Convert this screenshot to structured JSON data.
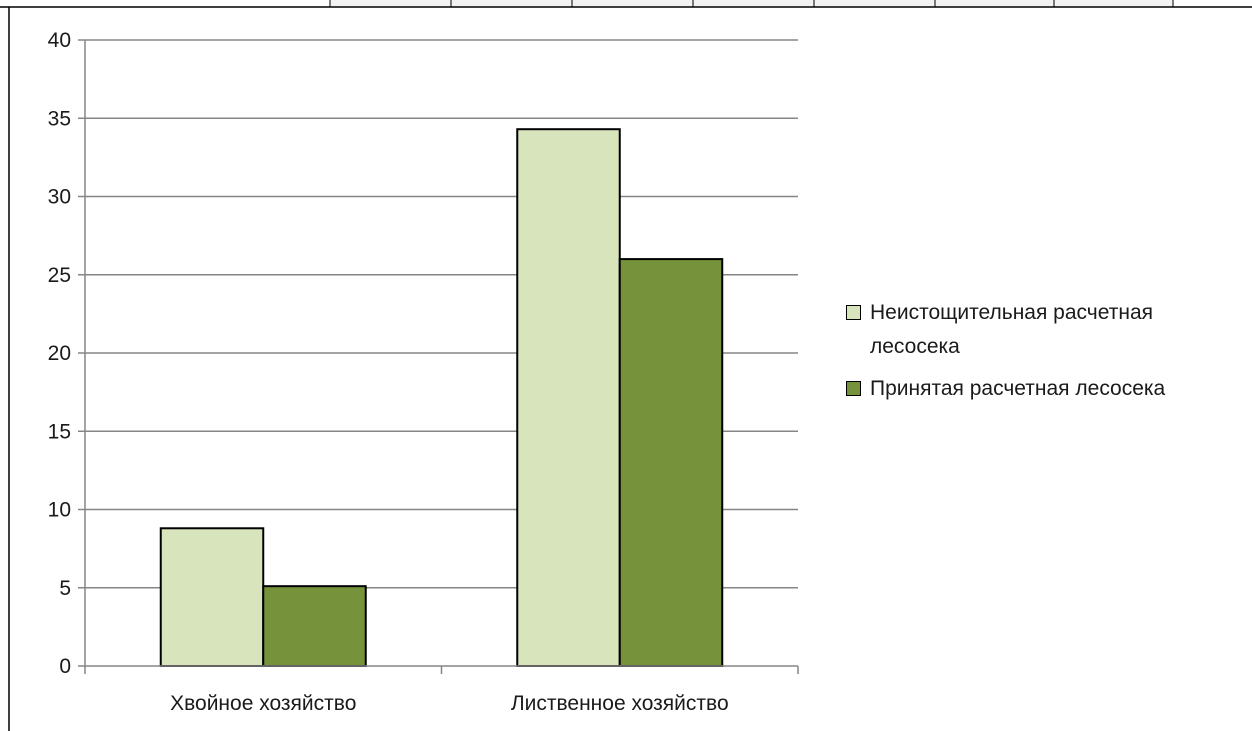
{
  "chart_data": {
    "type": "bar",
    "categories": [
      "Хвойное хозяйство",
      "Лиственное хозяйство"
    ],
    "series": [
      {
        "name": "Неистощительная расчетная лесосека",
        "values": [
          8.8,
          34.3
        ],
        "color": "#d8e4bc"
      },
      {
        "name": "Принятая расчетная лесосека",
        "values": [
          5.1,
          26.0
        ],
        "color": "#76933c"
      }
    ],
    "yticks": [
      "0",
      "5",
      "10",
      "15",
      "20",
      "25",
      "30",
      "35",
      "40"
    ],
    "ylim": [
      0,
      40
    ],
    "grid": true,
    "legend_position": "right",
    "title": "",
    "xlabel": "",
    "ylabel": ""
  },
  "legend": {
    "items": [
      {
        "label": "Неистощительная расчетная лесосека",
        "color": "#d8e4bc"
      },
      {
        "label": "Принятая расчетная лесосека",
        "color": "#76933c"
      }
    ]
  }
}
